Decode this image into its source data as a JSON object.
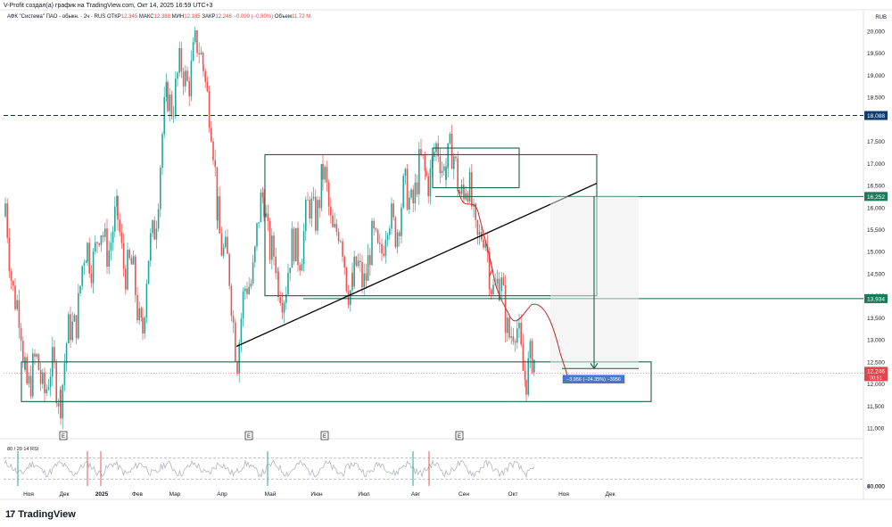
{
  "attribution": "V-Profit создал(а) график на TradingView.com, Окт 14, 2025 16:59 UTC+3",
  "legend": {
    "symbol": "АФК \"Система\" ПАО - обыкн. · 2ч · RUS",
    "open_label": "ОТКР",
    "open": "12.345",
    "high_label": "МАКС",
    "high": "12.388",
    "low_label": "МИН",
    "low": "12.185",
    "close_label": "ЗАКР",
    "close": "12.246",
    "change": "−0.099 (−0.80%)",
    "volume_label": "Объем",
    "volume": "11.72 M"
  },
  "currency": "RUB",
  "brand": "TradingView",
  "colors": {
    "up": "#26a69a",
    "down": "#ef5350",
    "box": "#1b5e4a",
    "trend": "#000000",
    "forecast": "#c62828",
    "dashed": "#0d2b57",
    "label_blue": "#0d3c73",
    "label_green": "#1b7a5a",
    "label_red": "#e0464b",
    "measure": "#2962ff"
  },
  "chart_data": [
    {
      "type": "candlestick",
      "title": "АФК \"Система\" ПАО - обыкн.",
      "timeframe": "2ч",
      "ylim": [
        11.0,
        20.0
      ],
      "y_ticks": [
        "20,000",
        "19,500",
        "19,000",
        "18,500",
        "17,500",
        "17,000",
        "16,500",
        "16,000",
        "15,500",
        "15,000",
        "14,500",
        "14,000",
        "13,500",
        "13,000",
        "12,500",
        "12,000",
        "11,500",
        "11,000"
      ],
      "x_ticks": [
        "Ноя",
        "Дек",
        "2025",
        "Фев",
        "Мар",
        "Апр",
        "Май",
        "Июн",
        "Июл",
        "Авг",
        "Сен",
        "Окт",
        "Ноя",
        "Дек"
      ],
      "price_path": [
        {
          "x": "Ноя",
          "y": 15.8
        },
        {
          "x": "Ноя",
          "y": 12.3
        },
        {
          "x": "Дек",
          "y": 12.0
        },
        {
          "x": "Дек",
          "y": 15.0
        },
        {
          "x": "2025",
          "y": 15.5
        },
        {
          "x": "Фев",
          "y": 13.4
        },
        {
          "x": "Фев",
          "y": 18.5
        },
        {
          "x": "Мар",
          "y": 19.6
        },
        {
          "x": "Апр",
          "y": 16.0
        },
        {
          "x": "Апр",
          "y": 12.9
        },
        {
          "x": "Май",
          "y": 16.2
        },
        {
          "x": "Июн",
          "y": 14.1
        },
        {
          "x": "Июн",
          "y": 16.5
        },
        {
          "x": "Июл",
          "y": 14.2
        },
        {
          "x": "Авг",
          "y": 16.9
        },
        {
          "x": "Авг",
          "y": 17.2
        },
        {
          "x": "Сен",
          "y": 16.5
        },
        {
          "x": "Сен",
          "y": 14.0
        },
        {
          "x": "Окт",
          "y": 12.4
        },
        {
          "x": "Окт",
          "y": 12.246
        }
      ],
      "last_price": "12,246",
      "countdown": "00:51",
      "levels": [
        {
          "value": "18,088",
          "style": "dashed"
        },
        {
          "value": "16,252",
          "style": "solid"
        },
        {
          "value": "13,934",
          "style": "solid"
        }
      ],
      "measure_label": "−3,956 (−24.35%) −3956",
      "earnings_markers": [
        "E",
        "E",
        "E",
        "E"
      ]
    },
    {
      "type": "line",
      "title": "80 / 20 14 RSI",
      "y_ticks": [
        "80,000",
        "40,000"
      ]
    }
  ]
}
